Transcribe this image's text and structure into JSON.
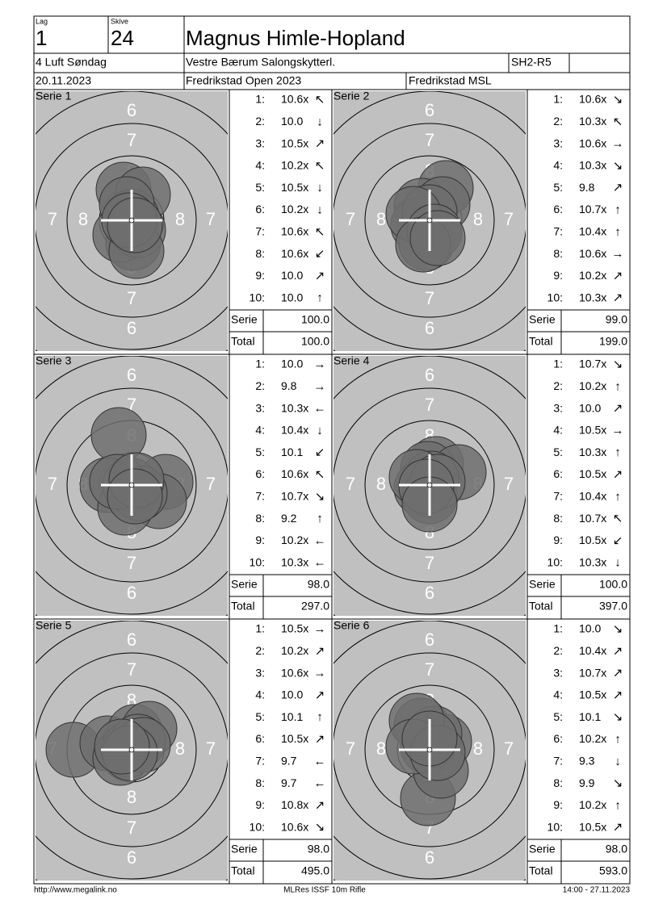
{
  "header": {
    "lag_label": "Lag",
    "lag": "1",
    "skive_label": "Skive",
    "skive": "24",
    "name": "Magnus Himle-Hopland",
    "event": "4 Luft Søndag",
    "club": "Vestre Bærum Salongskytterl.",
    "class": "SH2-R5",
    "date": "20.11.2023",
    "competition": "Fredrikstad Open 2023",
    "organizer": "Fredrikstad MSL"
  },
  "ring_labels": [
    "6",
    "7",
    "8"
  ],
  "series": [
    {
      "label": "Serie 1",
      "shots": [
        {
          "no": "1:",
          "score": "10.6x",
          "arrow": "↖"
        },
        {
          "no": "2:",
          "score": "10.0",
          "arrow": "↓"
        },
        {
          "no": "3:",
          "score": "10.5x",
          "arrow": "↗"
        },
        {
          "no": "4:",
          "score": "10.2x",
          "arrow": "↖"
        },
        {
          "no": "5:",
          "score": "10.5x",
          "arrow": "↓"
        },
        {
          "no": "6:",
          "score": "10.2x",
          "arrow": "↓"
        },
        {
          "no": "7:",
          "score": "10.6x",
          "arrow": "↖"
        },
        {
          "no": "8:",
          "score": "10.6x",
          "arrow": "↙"
        },
        {
          "no": "9:",
          "score": "10.0",
          "arrow": "↗"
        },
        {
          "no": "10:",
          "score": "10.0",
          "arrow": "↑"
        }
      ],
      "serie_label": "Serie",
      "serie": "100.0",
      "total_label": "Total",
      "total": "100.0"
    },
    {
      "label": "Serie 2",
      "shots": [
        {
          "no": "1:",
          "score": "10.6x",
          "arrow": "↘"
        },
        {
          "no": "2:",
          "score": "10.3x",
          "arrow": "↖"
        },
        {
          "no": "3:",
          "score": "10.6x",
          "arrow": "→"
        },
        {
          "no": "4:",
          "score": "10.3x",
          "arrow": "↘"
        },
        {
          "no": "5:",
          "score": "9.8",
          "arrow": "↗"
        },
        {
          "no": "6:",
          "score": "10.7x",
          "arrow": "↑"
        },
        {
          "no": "7:",
          "score": "10.4x",
          "arrow": "↑"
        },
        {
          "no": "8:",
          "score": "10.6x",
          "arrow": "→"
        },
        {
          "no": "9:",
          "score": "10.2x",
          "arrow": "↗"
        },
        {
          "no": "10:",
          "score": "10.3x",
          "arrow": "↗"
        }
      ],
      "serie_label": "Serie",
      "serie": "99.0",
      "total_label": "Total",
      "total": "199.0"
    },
    {
      "label": "Serie 3",
      "shots": [
        {
          "no": "1:",
          "score": "10.0",
          "arrow": "→"
        },
        {
          "no": "2:",
          "score": "9.8",
          "arrow": "→"
        },
        {
          "no": "3:",
          "score": "10.3x",
          "arrow": "←"
        },
        {
          "no": "4:",
          "score": "10.4x",
          "arrow": "↓"
        },
        {
          "no": "5:",
          "score": "10.1",
          "arrow": "↙"
        },
        {
          "no": "6:",
          "score": "10.6x",
          "arrow": "↖"
        },
        {
          "no": "7:",
          "score": "10.7x",
          "arrow": "↘"
        },
        {
          "no": "8:",
          "score": "9.2",
          "arrow": "↑"
        },
        {
          "no": "9:",
          "score": "10.2x",
          "arrow": "←"
        },
        {
          "no": "10:",
          "score": "10.3x",
          "arrow": "←"
        }
      ],
      "serie_label": "Serie",
      "serie": "98.0",
      "total_label": "Total",
      "total": "297.0"
    },
    {
      "label": "Serie 4",
      "shots": [
        {
          "no": "1:",
          "score": "10.7x",
          "arrow": "↘"
        },
        {
          "no": "2:",
          "score": "10.2x",
          "arrow": "↑"
        },
        {
          "no": "3:",
          "score": "10.0",
          "arrow": "↗"
        },
        {
          "no": "4:",
          "score": "10.5x",
          "arrow": "→"
        },
        {
          "no": "5:",
          "score": "10.3x",
          "arrow": "↑"
        },
        {
          "no": "6:",
          "score": "10.5x",
          "arrow": "↗"
        },
        {
          "no": "7:",
          "score": "10.4x",
          "arrow": "↑"
        },
        {
          "no": "8:",
          "score": "10.7x",
          "arrow": "↖"
        },
        {
          "no": "9:",
          "score": "10.5x",
          "arrow": "↙"
        },
        {
          "no": "10:",
          "score": "10.3x",
          "arrow": "↓"
        }
      ],
      "serie_label": "Serie",
      "serie": "100.0",
      "total_label": "Total",
      "total": "397.0"
    },
    {
      "label": "Serie 5",
      "shots": [
        {
          "no": "1:",
          "score": "10.5x",
          "arrow": "→"
        },
        {
          "no": "2:",
          "score": "10.2x",
          "arrow": "↗"
        },
        {
          "no": "3:",
          "score": "10.6x",
          "arrow": "→"
        },
        {
          "no": "4:",
          "score": "10.0",
          "arrow": "↗"
        },
        {
          "no": "5:",
          "score": "10.1",
          "arrow": "↑"
        },
        {
          "no": "6:",
          "score": "10.5x",
          "arrow": "↗"
        },
        {
          "no": "7:",
          "score": "9.7",
          "arrow": "←"
        },
        {
          "no": "8:",
          "score": "9.7",
          "arrow": "←"
        },
        {
          "no": "9:",
          "score": "10.8x",
          "arrow": "↗"
        },
        {
          "no": "10:",
          "score": "10.6x",
          "arrow": "↘"
        }
      ],
      "serie_label": "Serie",
      "serie": "98.0",
      "total_label": "Total",
      "total": "495.0"
    },
    {
      "label": "Serie 6",
      "shots": [
        {
          "no": "1:",
          "score": "10.0",
          "arrow": "↘"
        },
        {
          "no": "2:",
          "score": "10.4x",
          "arrow": "↗"
        },
        {
          "no": "3:",
          "score": "10.7x",
          "arrow": "↗"
        },
        {
          "no": "4:",
          "score": "10.5x",
          "arrow": "↗"
        },
        {
          "no": "5:",
          "score": "10.1",
          "arrow": "↘"
        },
        {
          "no": "6:",
          "score": "10.2x",
          "arrow": "↑"
        },
        {
          "no": "7:",
          "score": "9.3",
          "arrow": "↓"
        },
        {
          "no": "8:",
          "score": "9.9",
          "arrow": "↘"
        },
        {
          "no": "9:",
          "score": "10.2x",
          "arrow": "↑"
        },
        {
          "no": "10:",
          "score": "10.5x",
          "arrow": "↗"
        }
      ],
      "serie_label": "Serie",
      "serie": "98.0",
      "total_label": "Total",
      "total": "593.0"
    }
  ],
  "footer": {
    "left": "http://www.megalink.no",
    "center": "MLRes ISSF 10m Rifle",
    "right": "14:00 - 27.11.2023"
  }
}
